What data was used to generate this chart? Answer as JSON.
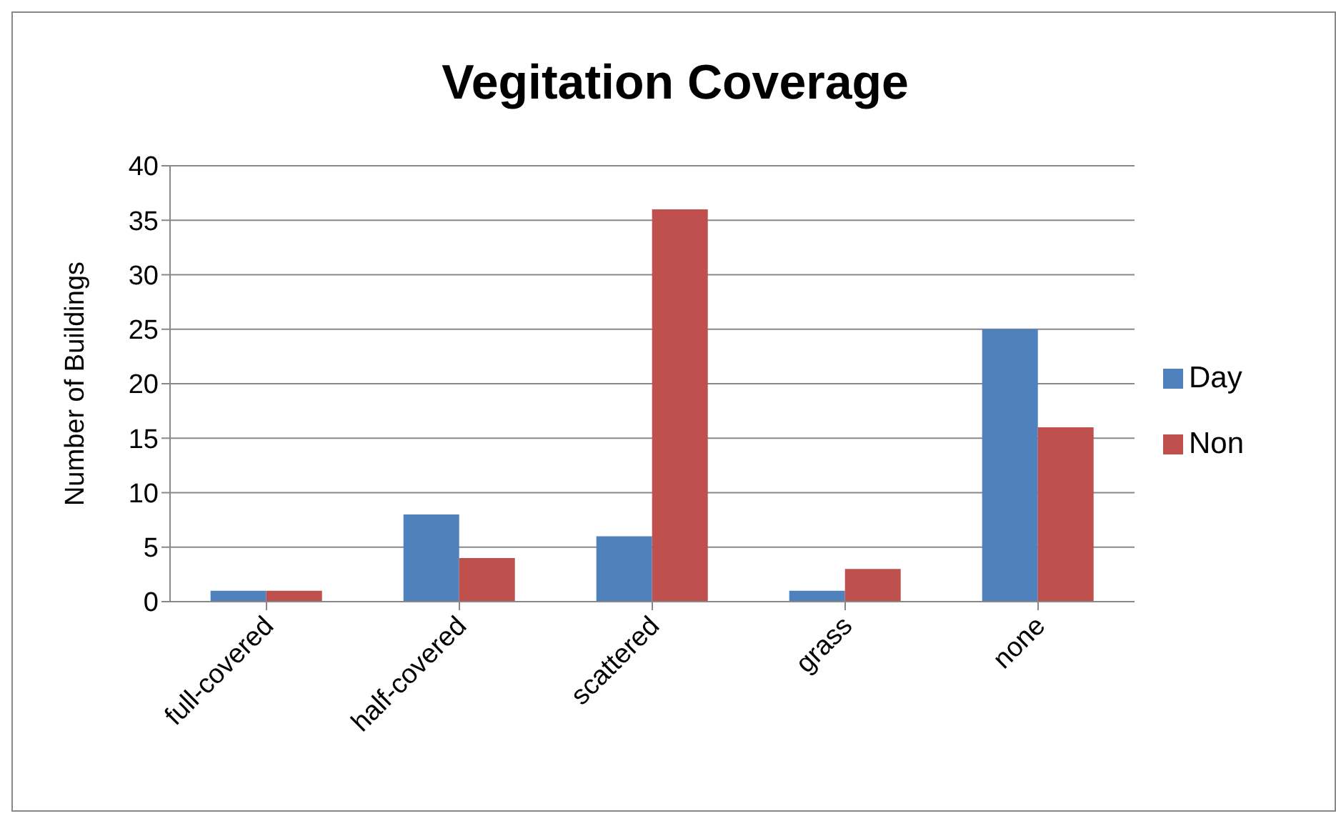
{
  "chart_data": {
    "type": "bar",
    "title": "Vegitation Coverage",
    "ylabel": "Number of Buildings",
    "categories": [
      "full-covered",
      "half-covered",
      "scattered",
      "grass",
      "none"
    ],
    "series": [
      {
        "name": "Day",
        "color": "#4f81bd",
        "values": [
          1,
          8,
          6,
          1,
          25
        ]
      },
      {
        "name": "Non",
        "color": "#c0504d",
        "values": [
          1,
          4,
          36,
          3,
          16
        ]
      }
    ],
    "ylim": [
      0,
      40
    ],
    "yticks": [
      0,
      5,
      10,
      15,
      20,
      25,
      30,
      35,
      40
    ],
    "grid": "y",
    "legend": "right"
  }
}
